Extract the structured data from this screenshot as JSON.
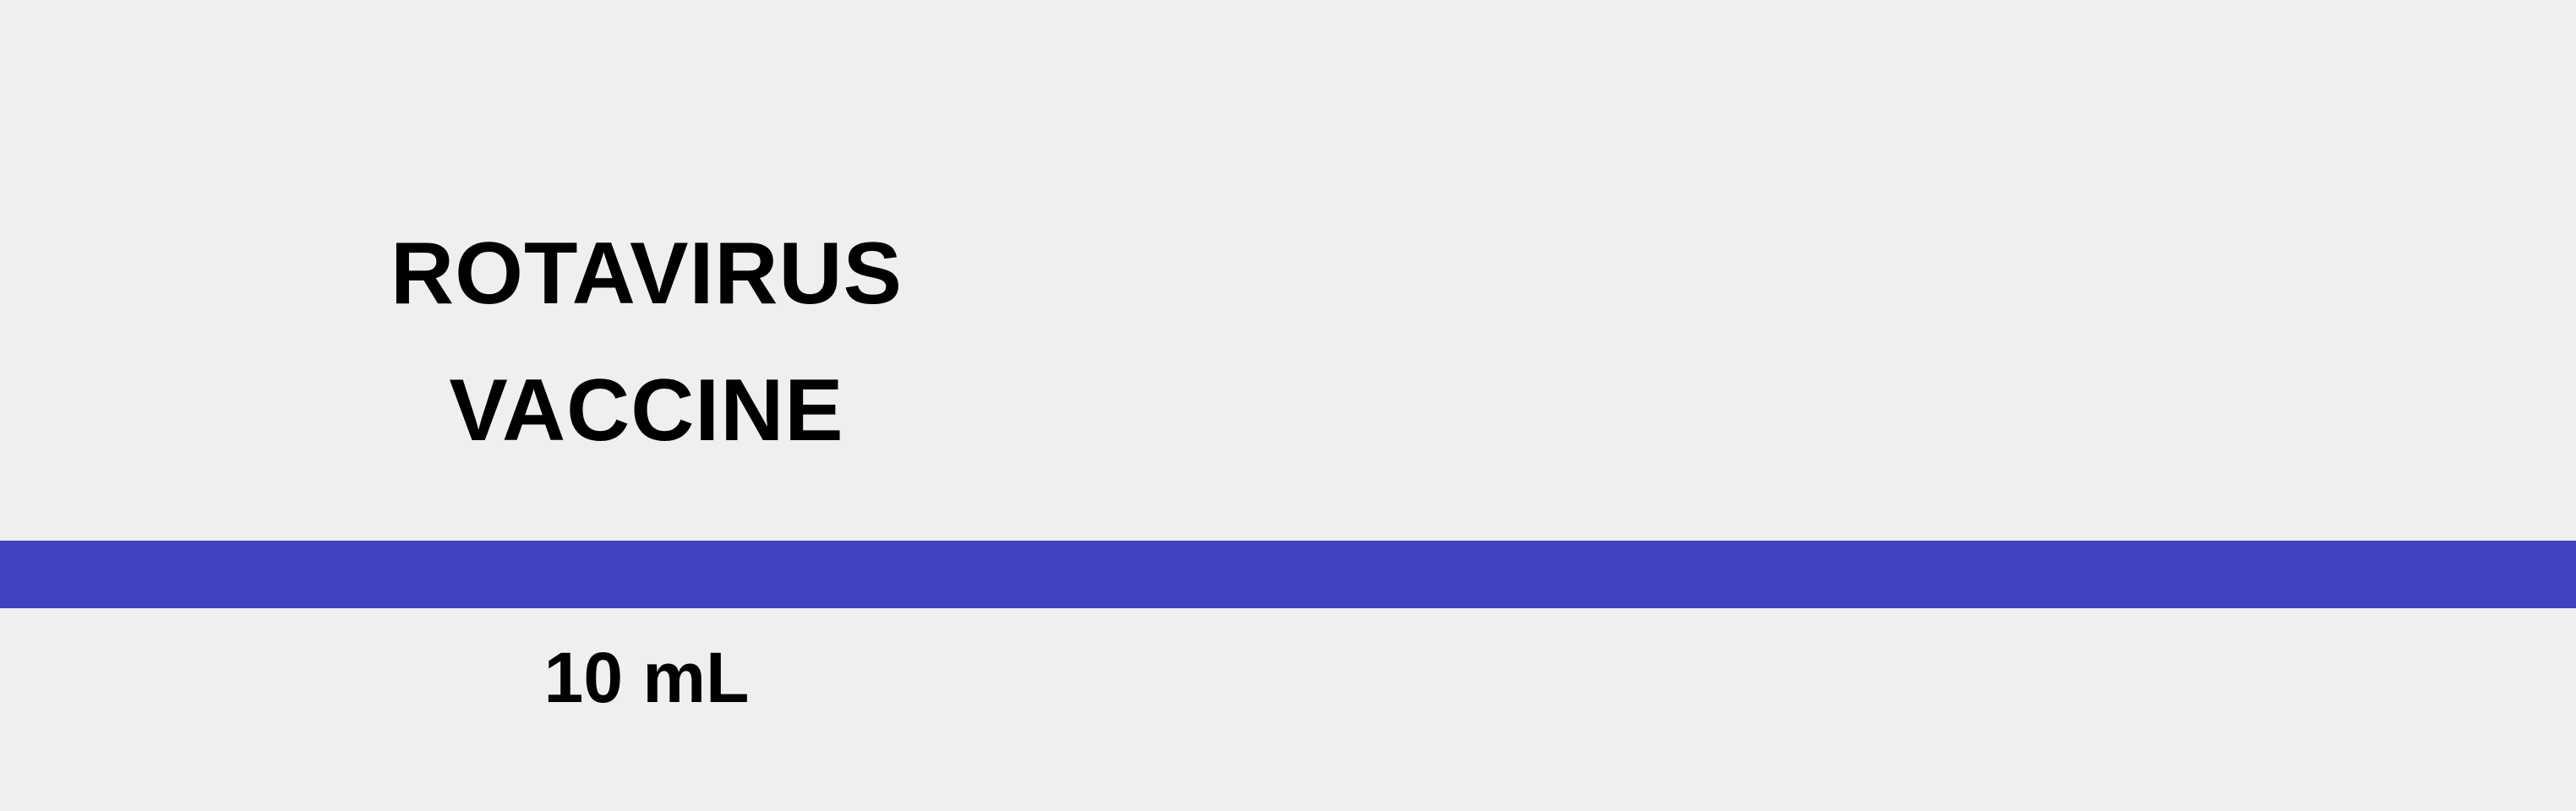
{
  "label": {
    "title_line1": "ROTAVIRUS",
    "title_line2": "VACCINE",
    "volume": "10 mL"
  },
  "colors": {
    "background": "#efefef",
    "stripe": "#4242c0",
    "text": "#000000"
  }
}
